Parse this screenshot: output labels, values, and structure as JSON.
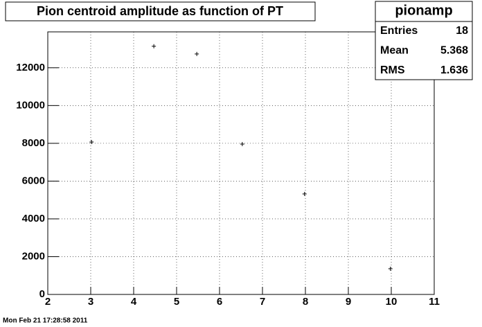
{
  "chart_data": {
    "type": "scatter",
    "title": "Pion centroid amplitude as function of PT",
    "x": [
      3.02,
      4.47,
      5.47,
      6.53,
      7.98,
      9.98
    ],
    "values": [
      8070,
      13140,
      12730,
      7960,
      5320,
      1360
    ],
    "color": "#000000",
    "xlim": [
      2,
      11
    ],
    "xticks": [
      2,
      3,
      4,
      5,
      6,
      7,
      8,
      9,
      10,
      11
    ],
    "ylim": [
      0,
      13900
    ],
    "yticks": [
      0,
      2000,
      4000,
      6000,
      8000,
      10000,
      12000
    ],
    "grid": true,
    "stats": {
      "name": "pionamp",
      "rows": [
        [
          "Entries",
          18
        ],
        [
          "Mean",
          5.368
        ],
        [
          "RMS",
          1.636
        ]
      ]
    },
    "timestamp": "Mon Feb 21 17:28:58 2011"
  }
}
